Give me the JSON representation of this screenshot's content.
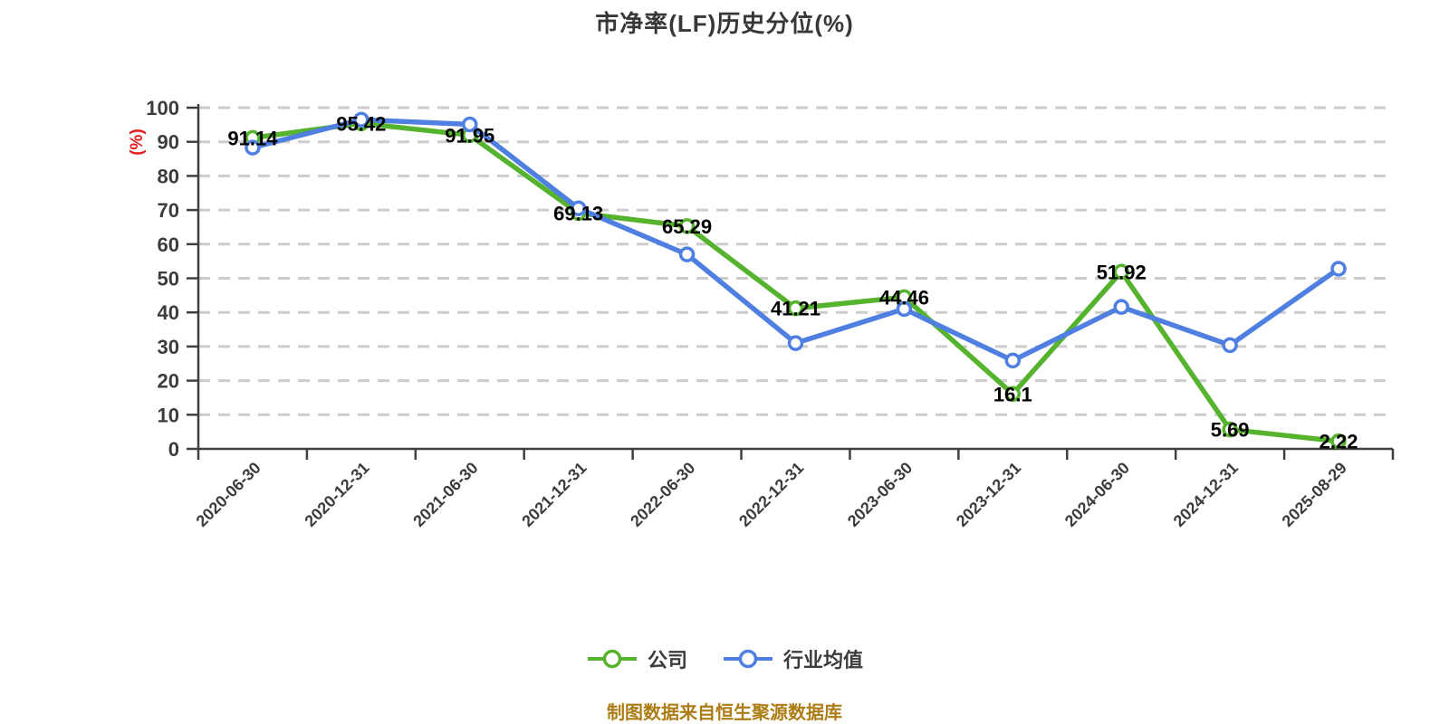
{
  "title": "市净率(LF)历史分位(%)",
  "footer": {
    "source_note": "制图数据来自恒生聚源数据库"
  },
  "chart_data": {
    "type": "line",
    "title": "市净率(LF)历史分位(%)",
    "xlabel": "",
    "ylabel": "(%)",
    "ylim": [
      0,
      100
    ],
    "ytick_step": 10,
    "grid": "horizontal-dashed",
    "legend_position": "bottom",
    "categories": [
      "2020-06-30",
      "2020-12-31",
      "2021-06-30",
      "2021-12-31",
      "2022-06-30",
      "2022-12-31",
      "2023-06-30",
      "2023-12-31",
      "2024-06-30",
      "2024-12-31",
      "2025-08-29"
    ],
    "series": [
      {
        "name": "公司",
        "color": "#56b32e",
        "show_labels": true,
        "values": [
          91.14,
          95.42,
          91.95,
          69.13,
          65.29,
          41.21,
          44.46,
          16.1,
          51.92,
          5.69,
          2.22
        ]
      },
      {
        "name": "行业均值",
        "color": "#4e7fe1",
        "show_labels": false,
        "values": [
          88.3,
          96.5,
          95.1,
          70.5,
          57.0,
          31.0,
          41.0,
          25.9,
          41.6,
          30.4,
          52.8
        ]
      }
    ],
    "marker": {
      "fill": "#ffffff"
    },
    "colors": {
      "axis": "#3f3f3f",
      "grid": "#cccccc",
      "tick_label": "#3c3c3c",
      "data_label": "#000000",
      "ylabel": "#e01e1e",
      "title": "#373737",
      "footer": "#ac7c15"
    }
  }
}
